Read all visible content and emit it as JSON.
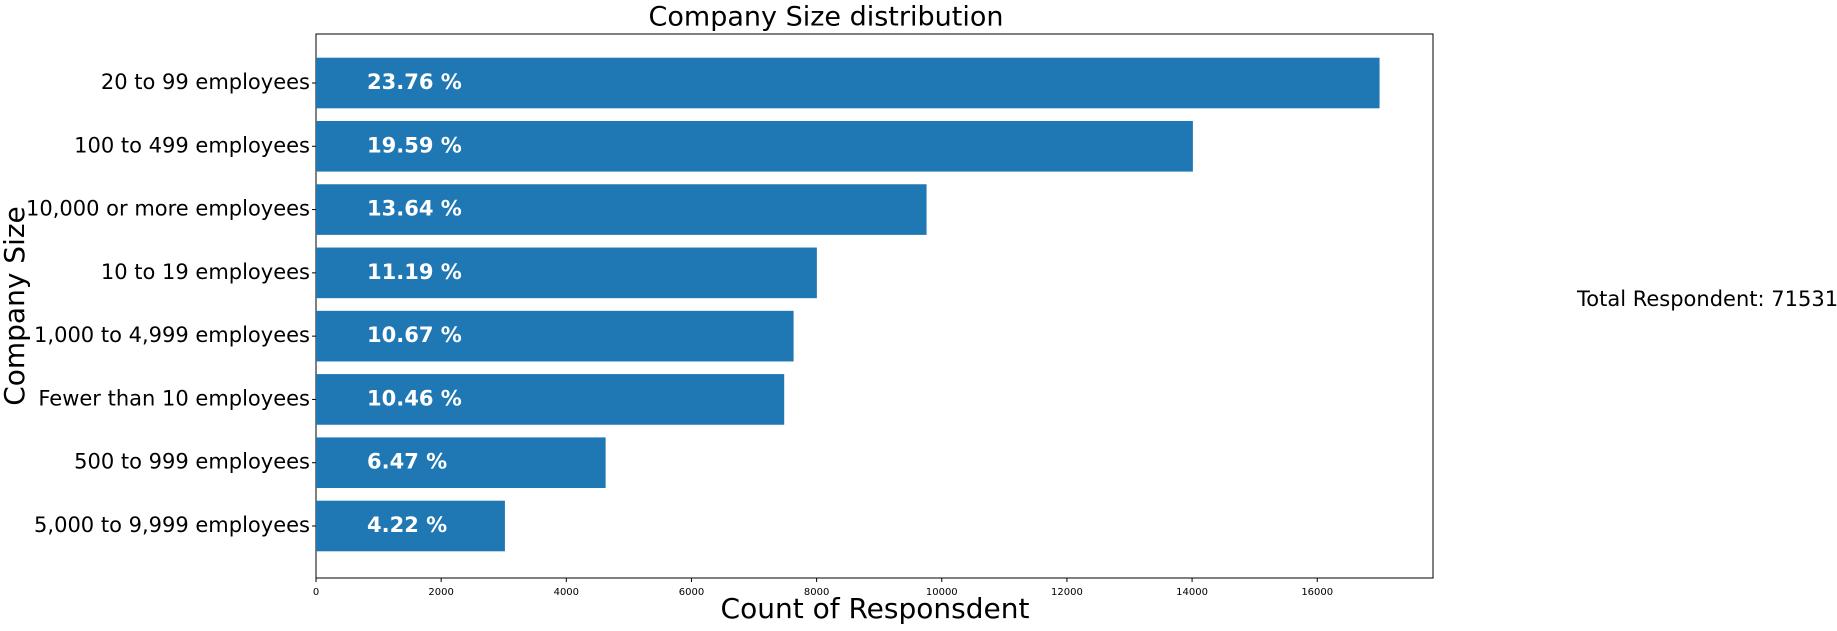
{
  "chart_data": {
    "type": "barh",
    "title": "Company Size distribution",
    "x_label": "Count of Responsdent",
    "y_label": "Company Size",
    "categories": [
      "20 to 99 employees",
      "100 to 499 employees",
      "10,000 or more employees",
      "10 to 19 employees",
      "1,000 to 4,999 employees",
      "Fewer than 10 employees",
      "500 to 999 employees",
      "5,000 to 9,999 employees"
    ],
    "values": [
      16996,
      14013,
      9757,
      8004,
      7632,
      7482,
      4628,
      3019
    ],
    "color": "#1f77b4",
    "shares": {
      "values": [
        23.76,
        19.59,
        13.64,
        11.19,
        10.67,
        10.46,
        6.47,
        4.22
      ],
      "value_labels": [
        "23.76 %",
        "19.59 %",
        "13.64 %",
        "11.19 %",
        "10.67 %",
        "10.46 %",
        "6.47 %",
        "4.22 %"
      ]
    },
    "xlim": [
      0,
      17850
    ],
    "xticks": [
      0,
      2000,
      4000,
      6000,
      8000,
      10000,
      12000,
      14000,
      16000
    ],
    "annotation": "Total Respondent: 71531"
  }
}
